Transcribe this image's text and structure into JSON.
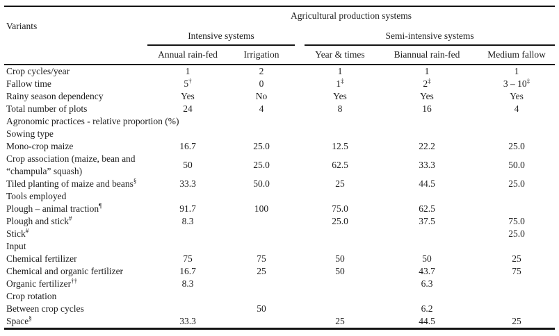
{
  "header": {
    "title": "Agricultural production systems",
    "variants_label": "Variants",
    "groups": [
      {
        "label": "Intensive systems",
        "cols": [
          "Annual rain-fed",
          "Irrigation"
        ]
      },
      {
        "label": "Semi-intensive systems",
        "cols": [
          "Year & times",
          "Biannual rain-fed",
          "Medium fallow"
        ]
      }
    ]
  },
  "table": {
    "note": "In label/cell strings the character ^ separates base text from its superscript footnote marker",
    "rows": [
      {
        "label": "Crop cycles/year",
        "cells": [
          "1",
          "2",
          "1",
          "1",
          "1"
        ]
      },
      {
        "label": "Fallow time",
        "cells": [
          "5^†",
          "0",
          "1^‡",
          "2^‡",
          "3 – 10^‡"
        ]
      },
      {
        "label": "Rainy season dependency",
        "cells": [
          "Yes",
          "No",
          "Yes",
          "Yes",
          "Yes"
        ]
      },
      {
        "label": "Total number of plots",
        "cells": [
          "24",
          "4",
          "8",
          "16",
          "4"
        ]
      },
      {
        "label": "Agronomic practices - relative proportion (%)",
        "section": true
      },
      {
        "label": "Sowing type",
        "section": true
      },
      {
        "label": "Mono-crop maize",
        "cells": [
          "16.7",
          "25.0",
          "12.5",
          "22.2",
          "25.0"
        ]
      },
      {
        "label": "Crop association (maize, bean and “champula” squash)",
        "cells": [
          "50",
          "25.0",
          "62.5",
          "33.3",
          "50.0"
        ]
      },
      {
        "label": "Tiled planting of maize and beans^§",
        "cells": [
          "33.3",
          "50.0",
          "25",
          "44.5",
          "25.0"
        ]
      },
      {
        "label": "Tools employed",
        "section": true
      },
      {
        "label": "Plough – animal traction^¶",
        "cells": [
          "91.7",
          "100",
          "75.0",
          "62.5",
          ""
        ]
      },
      {
        "label": "Plough and stick^#",
        "cells": [
          "8.3",
          "",
          "25.0",
          "37.5",
          "75.0"
        ]
      },
      {
        "label": "Stick^#",
        "cells": [
          "",
          "",
          "",
          "",
          "25.0"
        ]
      },
      {
        "label": "Input",
        "section": true
      },
      {
        "label": "Chemical fertilizer",
        "cells": [
          "75",
          "75",
          "50",
          "50",
          "25"
        ]
      },
      {
        "label": "Chemical and organic fertilizer",
        "cells": [
          "16.7",
          "25",
          "50",
          "43.7",
          "75"
        ]
      },
      {
        "label": "Organic fertilizer^††",
        "cells": [
          "8.3",
          "",
          "",
          "6.3",
          ""
        ]
      },
      {
        "label": "Crop rotation",
        "section": true
      },
      {
        "label": "Between crop cycles",
        "cells": [
          "",
          "50",
          "",
          "6.2",
          ""
        ]
      },
      {
        "label": "Space^§",
        "cells": [
          "33.3",
          "",
          "25",
          "44.5",
          "25"
        ]
      }
    ]
  }
}
